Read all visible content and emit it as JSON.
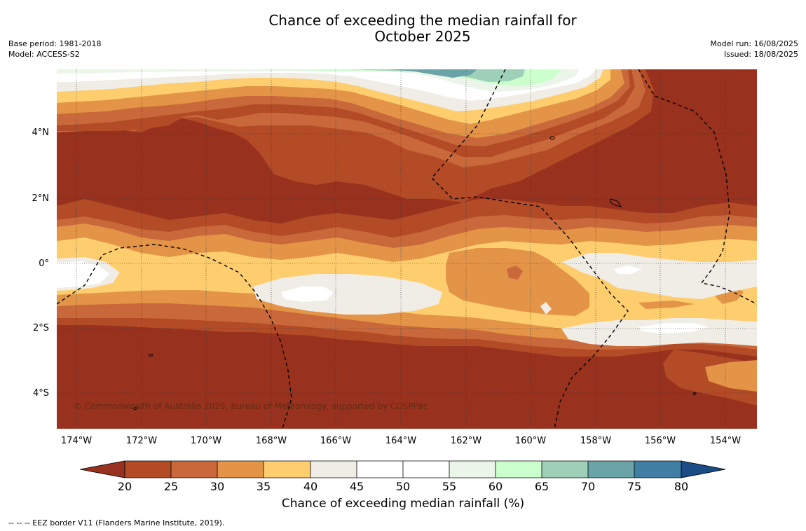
{
  "title_line1": "Chance of exceeding the median rainfall for",
  "title_line2": "October 2025",
  "base_period": "Base period: 1981-2018",
  "model": "Model: ACCESS-S2",
  "model_run": "Model run: 16/08/2025",
  "issued": "Issued: 18/08/2025",
  "lat_labels": [
    "4°N",
    "2°N",
    "0°",
    "2°S",
    "4°S"
  ],
  "lon_labels": [
    "174°W",
    "172°W",
    "170°W",
    "168°W",
    "166°W",
    "164°W",
    "162°W",
    "160°W",
    "158°W",
    "156°W",
    "154°W"
  ],
  "copyright": "© Commonwealth of Australia 2025, Bureau of Meteorology, supported by COSPPac",
  "colorbar": {
    "label": "Chance of exceeding median rainfall (%)",
    "ticks": [
      "20",
      "25",
      "30",
      "35",
      "40",
      "45",
      "50",
      "55",
      "60",
      "65",
      "70",
      "75",
      "80"
    ],
    "colors": {
      "below_20": "#98311e",
      "20_25": "#b34b26",
      "25_30": "#c9683a",
      "30_35": "#e39447",
      "35_40": "#fecd6e",
      "40_45": "#f0ece6",
      "45_50": "#ffffff",
      "50_55": "#ffffff",
      "55_60": "#ebf5e9",
      "60_65": "#cbffcb",
      "65_70": "#9ecfb8",
      "70_75": "#6ba4a8",
      "75_80": "#3e7fa3",
      "above_80": "#1a4c85"
    }
  },
  "footnote": "--  --  -- EEZ border V11 (Flanders Marine Institute, 2019)."
}
